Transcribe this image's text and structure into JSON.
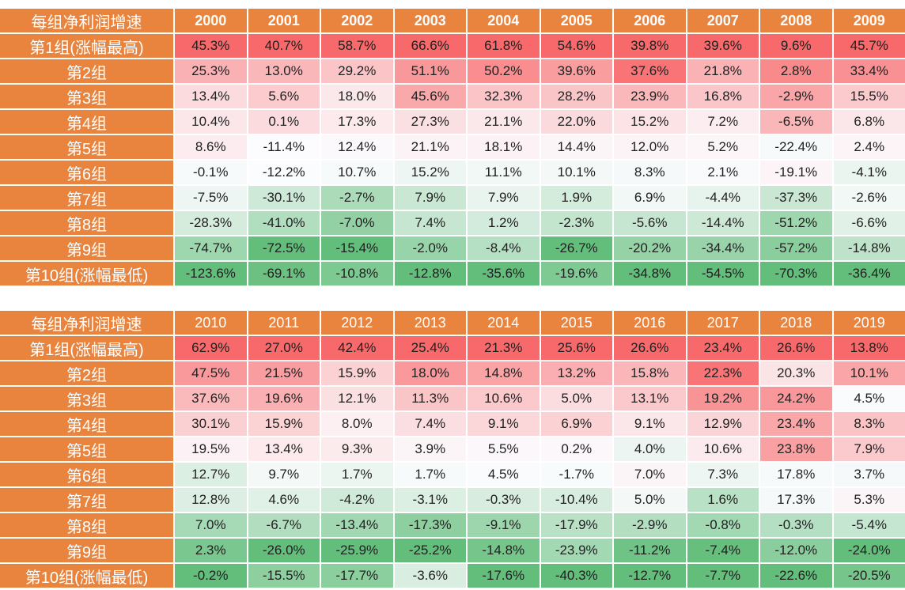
{
  "chart_data": [
    {
      "type": "heatmap",
      "corner_label": "每组净利润增速",
      "x_categories": [
        "2000",
        "2001",
        "2002",
        "2003",
        "2004",
        "2005",
        "2006",
        "2007",
        "2008",
        "2009"
      ],
      "unit": "%",
      "rows": [
        {
          "label": "第1组(涨幅最高)",
          "values": [
            45.3,
            40.7,
            58.7,
            66.6,
            61.8,
            54.6,
            39.8,
            39.6,
            9.6,
            45.7
          ]
        },
        {
          "label": "第2组",
          "values": [
            25.3,
            13.0,
            29.2,
            51.1,
            50.2,
            39.6,
            37.6,
            21.8,
            2.8,
            33.4
          ]
        },
        {
          "label": "第3组",
          "values": [
            13.4,
            5.6,
            18.0,
            45.6,
            32.3,
            28.2,
            23.9,
            16.8,
            -2.9,
            15.5
          ]
        },
        {
          "label": "第4组",
          "values": [
            10.4,
            0.1,
            17.3,
            27.3,
            21.1,
            22.0,
            15.2,
            7.2,
            -6.5,
            6.8
          ]
        },
        {
          "label": "第5组",
          "values": [
            8.6,
            -11.4,
            12.4,
            21.1,
            18.1,
            14.4,
            12.0,
            5.2,
            -22.4,
            2.4
          ]
        },
        {
          "label": "第6组",
          "values": [
            -0.1,
            -12.2,
            10.7,
            15.2,
            11.1,
            10.1,
            8.3,
            2.1,
            -19.1,
            -4.1
          ]
        },
        {
          "label": "第7组",
          "values": [
            -7.5,
            -30.1,
            -2.7,
            7.9,
            7.9,
            1.9,
            6.9,
            -4.4,
            -37.3,
            -2.6
          ]
        },
        {
          "label": "第8组",
          "values": [
            -28.3,
            -41.0,
            -7.0,
            7.4,
            1.2,
            -2.3,
            -5.6,
            -14.4,
            -51.2,
            -6.6
          ]
        },
        {
          "label": "第9组",
          "values": [
            -74.7,
            -72.5,
            -15.4,
            -2.0,
            -8.4,
            -26.7,
            -20.2,
            -34.4,
            -57.2,
            -14.8
          ]
        },
        {
          "label": "第10组(涨幅最低)",
          "values": [
            -123.6,
            -69.1,
            -10.8,
            -12.8,
            -35.6,
            -19.6,
            -34.8,
            -54.5,
            -70.3,
            -36.4
          ]
        }
      ]
    },
    {
      "type": "heatmap",
      "corner_label": "每组净利润增速",
      "x_categories": [
        "2010",
        "2011",
        "2012",
        "2013",
        "2014",
        "2015",
        "2016",
        "2017",
        "2018",
        "2019"
      ],
      "unit": "%",
      "rows": [
        {
          "label": "第1组(涨幅最高)",
          "values": [
            62.9,
            27.0,
            42.4,
            25.4,
            21.3,
            25.6,
            26.6,
            23.4,
            26.6,
            13.8
          ]
        },
        {
          "label": "第2组",
          "values": [
            47.5,
            21.5,
            15.9,
            18.0,
            14.8,
            13.2,
            15.8,
            22.3,
            20.3,
            10.1
          ]
        },
        {
          "label": "第3组",
          "values": [
            37.6,
            19.6,
            12.1,
            11.3,
            10.6,
            5.0,
            13.1,
            19.2,
            24.2,
            4.5
          ]
        },
        {
          "label": "第4组",
          "values": [
            30.1,
            15.9,
            8.0,
            7.4,
            9.1,
            6.9,
            9.1,
            12.9,
            23.4,
            8.3
          ]
        },
        {
          "label": "第5组",
          "values": [
            19.5,
            13.4,
            9.3,
            3.9,
            5.5,
            0.2,
            4.0,
            10.6,
            23.8,
            7.9
          ]
        },
        {
          "label": "第6组",
          "values": [
            12.7,
            9.7,
            1.7,
            1.7,
            4.5,
            -1.7,
            7.0,
            7.3,
            17.8,
            3.7
          ]
        },
        {
          "label": "第7组",
          "values": [
            12.8,
            4.6,
            -4.2,
            -3.1,
            -0.3,
            -10.4,
            5.0,
            1.6,
            17.3,
            5.3
          ]
        },
        {
          "label": "第8组",
          "values": [
            7.0,
            -6.7,
            -13.4,
            -17.3,
            -9.1,
            -17.9,
            -2.9,
            -0.8,
            -0.3,
            -5.4
          ]
        },
        {
          "label": "第9组",
          "values": [
            2.3,
            -26.0,
            -25.9,
            -25.2,
            -14.8,
            -23.9,
            -11.2,
            -7.4,
            -12.0,
            -24.0
          ]
        },
        {
          "label": "第10组(涨幅最低)",
          "values": [
            -0.2,
            -15.5,
            -17.7,
            -3.6,
            -17.6,
            -40.3,
            -12.7,
            -7.7,
            -22.6,
            -20.5
          ]
        }
      ]
    }
  ],
  "colors": {
    "header_bg": "#E9843F",
    "header_text": "#FFFFFF",
    "value_text": "#1F1F1F",
    "scale_max": "#F8696B",
    "scale_mid": "#FCFCFF",
    "scale_min": "#63BE7B"
  }
}
